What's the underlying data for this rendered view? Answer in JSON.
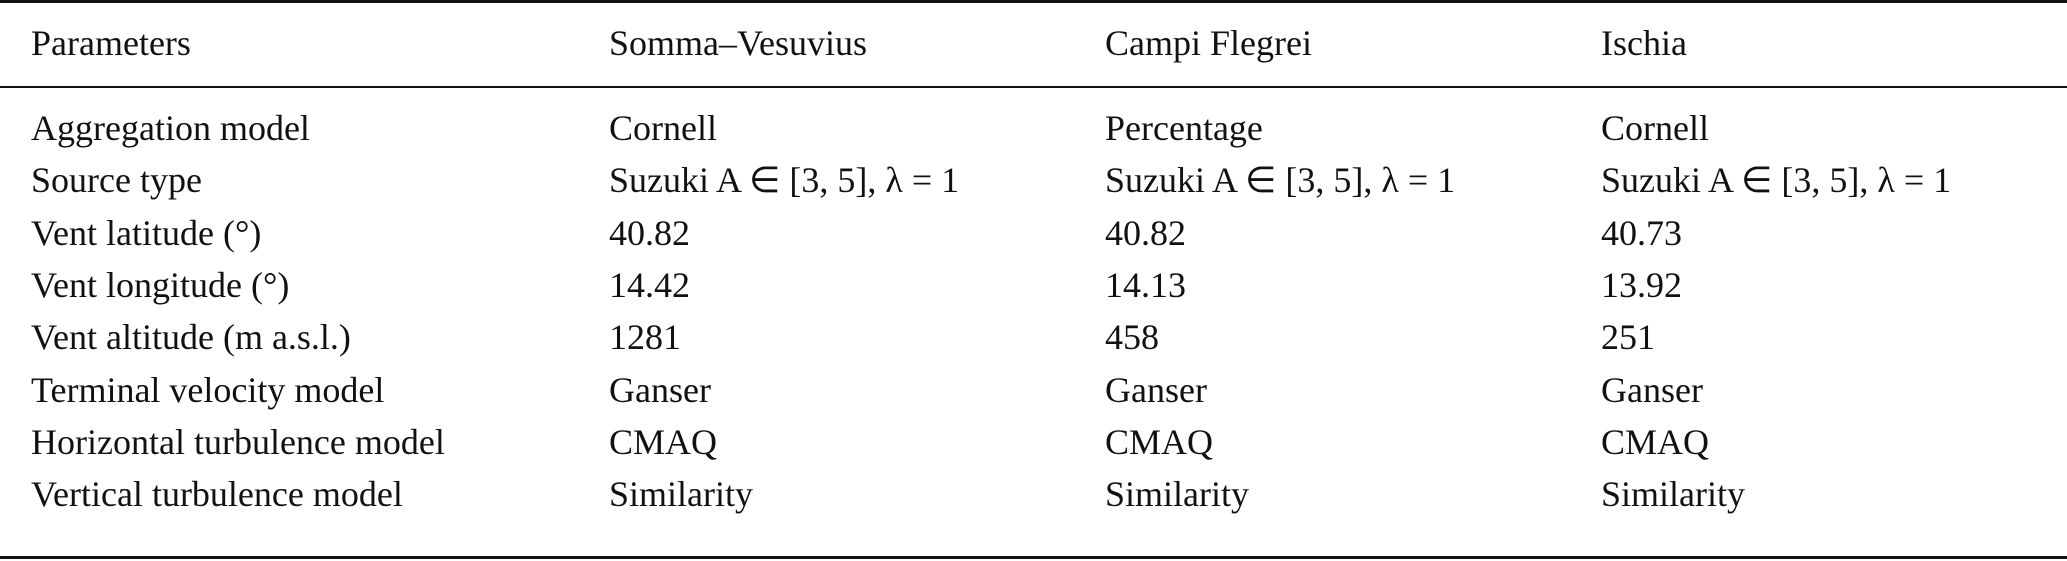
{
  "table": {
    "headers": [
      "Parameters",
      "Somma–Vesuvius",
      "Campi Flegrei",
      "Ischia"
    ],
    "rows": [
      [
        "Aggregation model",
        "Cornell",
        "Percentage",
        "Cornell"
      ],
      [
        "Source type",
        "Suzuki A ∈ [3, 5], λ = 1",
        "Suzuki A ∈ [3, 5], λ = 1",
        "Suzuki A ∈ [3, 5], λ = 1"
      ],
      [
        "Vent latitude (°)",
        "40.82",
        "40.82",
        "40.73"
      ],
      [
        "Vent longitude (°)",
        "14.42",
        "14.13",
        "13.92"
      ],
      [
        "Vent altitude (m a.s.l.)",
        "1281",
        "458",
        "251"
      ],
      [
        "Terminal velocity model",
        "Ganser",
        "Ganser",
        "Ganser"
      ],
      [
        "Horizontal turbulence model",
        "CMAQ",
        "CMAQ",
        "CMAQ"
      ],
      [
        "Vertical turbulence model",
        "Similarity",
        "Similarity",
        "Similarity"
      ]
    ]
  }
}
